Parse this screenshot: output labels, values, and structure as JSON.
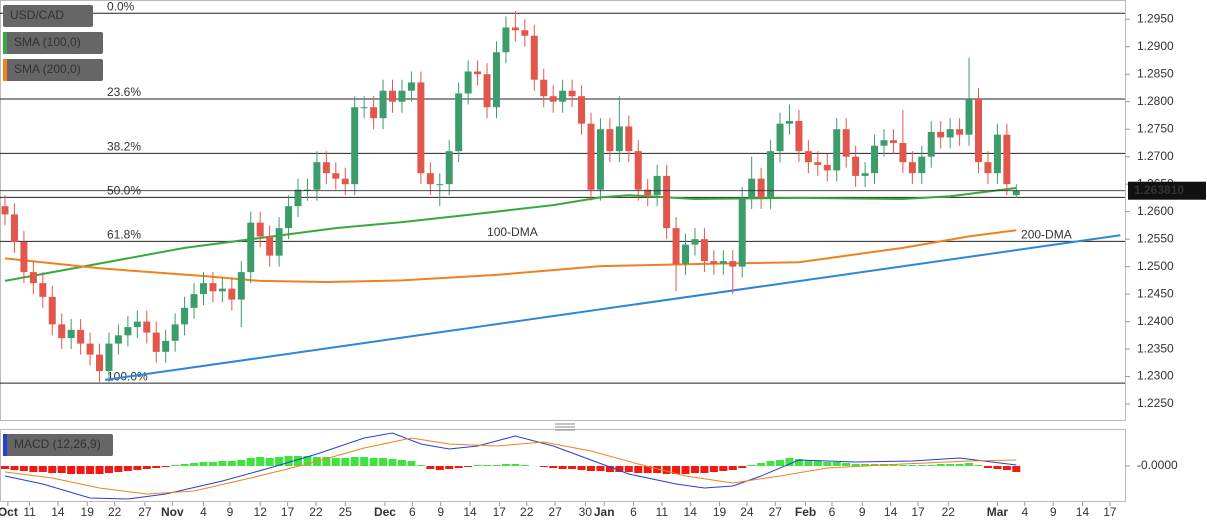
{
  "chart_data": [
    {
      "type": "candlestick",
      "title": "USD/CAD",
      "up_color": "#3d9c6b",
      "down_color": "#e2574c",
      "open": [
        1.261,
        1.2595,
        1.2545,
        1.249,
        1.247,
        1.2445,
        1.2395,
        1.237,
        1.2385,
        1.236,
        1.234,
        1.231,
        1.236,
        1.2375,
        1.239,
        1.24,
        1.238,
        1.2345,
        1.2365,
        1.2395,
        1.2425,
        1.245,
        1.247,
        1.2455,
        1.246,
        1.244,
        1.249,
        1.258,
        1.2555,
        1.252,
        1.257,
        1.261,
        1.264,
        1.264,
        1.269,
        1.267,
        1.266,
        1.265,
        1.279,
        1.279,
        1.277,
        1.282,
        1.28,
        1.282,
        1.2835,
        1.267,
        1.265,
        1.265,
        1.271,
        1.2815,
        1.2855,
        1.285,
        1.279,
        1.289,
        1.2935,
        1.293,
        1.292,
        1.284,
        1.281,
        1.28,
        1.282,
        1.281,
        1.276,
        1.264,
        1.275,
        1.271,
        1.2755,
        1.271,
        1.264,
        1.263,
        1.2665,
        1.257,
        1.2505,
        1.254,
        1.255,
        1.251,
        1.2505,
        1.251,
        1.25,
        1.2625,
        1.266,
        1.2625,
        1.271,
        1.276,
        1.2765,
        1.271,
        1.269,
        1.2685,
        1.2675,
        1.275,
        1.27,
        1.2665,
        1.267,
        1.272,
        1.273,
        1.2725,
        1.269,
        1.267,
        1.27,
        1.2745,
        1.2735,
        1.275,
        1.274,
        1.2805,
        1.269,
        1.267,
        1.274,
        1.263
      ],
      "high": [
        1.263,
        1.2615,
        1.2565,
        1.251,
        1.249,
        1.2465,
        1.2415,
        1.2405,
        1.2405,
        1.238,
        1.236,
        1.238,
        1.2395,
        1.241,
        1.242,
        1.242,
        1.24,
        1.2385,
        1.2415,
        1.2445,
        1.247,
        1.249,
        1.249,
        1.248,
        1.248,
        1.251,
        1.26,
        1.26,
        1.2575,
        1.259,
        1.263,
        1.266,
        1.266,
        1.271,
        1.271,
        1.269,
        1.268,
        1.281,
        1.281,
        1.281,
        1.284,
        1.284,
        1.284,
        1.2855,
        1.2855,
        1.269,
        1.267,
        1.273,
        1.2835,
        1.2875,
        1.2875,
        1.287,
        1.291,
        1.2955,
        1.2965,
        1.295,
        1.294,
        1.286,
        1.283,
        1.284,
        1.284,
        1.283,
        1.278,
        1.277,
        1.277,
        1.281,
        1.2775,
        1.273,
        1.266,
        1.2685,
        1.2685,
        1.259,
        1.256,
        1.257,
        1.257,
        1.253,
        1.253,
        1.253,
        1.2645,
        1.27,
        1.268,
        1.273,
        1.278,
        1.2795,
        1.2785,
        1.273,
        1.271,
        1.2705,
        1.277,
        1.277,
        1.272,
        1.269,
        1.274,
        1.275,
        1.275,
        1.2785,
        1.271,
        1.272,
        1.2765,
        1.2765,
        1.277,
        1.277,
        1.288,
        1.2825,
        1.271,
        1.276,
        1.276,
        1.265
      ],
      "low": [
        1.2575,
        1.2525,
        1.247,
        1.245,
        1.2425,
        1.2375,
        1.235,
        1.235,
        1.234,
        1.232,
        1.229,
        1.229,
        1.234,
        1.2355,
        1.237,
        1.236,
        1.2325,
        1.2325,
        1.2345,
        1.2375,
        1.2405,
        1.243,
        1.2435,
        1.2435,
        1.242,
        1.239,
        1.247,
        1.2535,
        1.25,
        1.25,
        1.255,
        1.259,
        1.262,
        1.262,
        1.265,
        1.264,
        1.263,
        1.263,
        1.277,
        1.275,
        1.275,
        1.278,
        1.278,
        1.28,
        1.265,
        1.263,
        1.261,
        1.263,
        1.269,
        1.2795,
        1.283,
        1.277,
        1.277,
        1.287,
        1.291,
        1.29,
        1.282,
        1.279,
        1.278,
        1.278,
        1.279,
        1.274,
        1.262,
        1.262,
        1.269,
        1.269,
        1.269,
        1.262,
        1.261,
        1.261,
        1.255,
        1.2455,
        1.2485,
        1.252,
        1.249,
        1.2485,
        1.2485,
        1.245,
        1.248,
        1.2605,
        1.2605,
        1.2605,
        1.269,
        1.274,
        1.269,
        1.267,
        1.2665,
        1.2655,
        1.2655,
        1.268,
        1.2645,
        1.2645,
        1.265,
        1.27,
        1.2705,
        1.267,
        1.265,
        1.265,
        1.268,
        1.2715,
        1.2715,
        1.272,
        1.272,
        1.267,
        1.265,
        1.265,
        1.263,
        1.2625
      ],
      "close": [
        1.2595,
        1.2545,
        1.249,
        1.247,
        1.2445,
        1.2395,
        1.237,
        1.2385,
        1.236,
        1.234,
        1.231,
        1.236,
        1.2375,
        1.239,
        1.24,
        1.238,
        1.2345,
        1.2365,
        1.2395,
        1.2425,
        1.245,
        1.247,
        1.2455,
        1.246,
        1.244,
        1.249,
        1.258,
        1.2555,
        1.252,
        1.257,
        1.261,
        1.264,
        1.264,
        1.269,
        1.267,
        1.266,
        1.265,
        1.279,
        1.279,
        1.277,
        1.282,
        1.28,
        1.282,
        1.2835,
        1.267,
        1.265,
        1.265,
        1.271,
        1.2815,
        1.2855,
        1.285,
        1.279,
        1.289,
        1.2935,
        1.293,
        1.292,
        1.284,
        1.281,
        1.28,
        1.282,
        1.281,
        1.276,
        1.264,
        1.275,
        1.271,
        1.2755,
        1.271,
        1.264,
        1.263,
        1.2665,
        1.257,
        1.2505,
        1.254,
        1.255,
        1.251,
        1.2505,
        1.251,
        1.25,
        1.2625,
        1.266,
        1.2625,
        1.271,
        1.276,
        1.2765,
        1.271,
        1.269,
        1.2685,
        1.2675,
        1.275,
        1.27,
        1.2665,
        1.267,
        1.272,
        1.273,
        1.2725,
        1.269,
        1.267,
        1.27,
        1.2745,
        1.2735,
        1.275,
        1.274,
        1.2805,
        1.269,
        1.267,
        1.274,
        1.265,
        1.2638
      ],
      "xlim": [
        -0.53,
        118.5
      ],
      "ylim": [
        1.2221,
        1.2985
      ],
      "yticks": [
        {
          "value": 1.295,
          "label": "1.2950"
        },
        {
          "value": 1.29,
          "label": "1.2900"
        },
        {
          "value": 1.285,
          "label": "1.2850"
        },
        {
          "value": 1.28,
          "label": "1.2800"
        },
        {
          "value": 1.275,
          "label": "1.2750"
        },
        {
          "value": 1.27,
          "label": "1.2700"
        },
        {
          "value": 1.265,
          "label": "1.2650"
        },
        {
          "value": 1.26,
          "label": "1.2600"
        },
        {
          "value": 1.255,
          "label": "1.2550"
        },
        {
          "value": 1.25,
          "label": "1.2500"
        },
        {
          "value": 1.245,
          "label": "1.2450"
        },
        {
          "value": 1.24,
          "label": "1.2400"
        },
        {
          "value": 1.235,
          "label": "1.2350"
        },
        {
          "value": 1.23,
          "label": "1.2300"
        },
        {
          "value": 1.225,
          "label": "1.2250"
        }
      ],
      "overlays": [
        {
          "name": "SMA (100,0)",
          "label": "100-DMA",
          "color": "#3aa83e",
          "x": [
            0,
            19,
            27,
            35,
            42,
            49,
            58,
            63,
            66,
            73,
            84,
            95,
            100,
            107
          ],
          "values": [
            1.2474,
            1.2534,
            1.2552,
            1.257,
            1.2581,
            1.2594,
            1.2612,
            1.2626,
            1.263,
            1.2623,
            1.2625,
            1.2623,
            1.2628,
            1.2643
          ]
        },
        {
          "name": "SMA (200,0)",
          "label": "200-DMA",
          "color": "#f0821e",
          "x": [
            0,
            10,
            21,
            27,
            34,
            42,
            52,
            63,
            74,
            84,
            95,
            102,
            107
          ],
          "values": [
            1.2515,
            1.2497,
            1.2483,
            1.2474,
            1.2472,
            1.2475,
            1.2485,
            1.2501,
            1.2505,
            1.2508,
            1.2534,
            1.2555,
            1.2566
          ]
        }
      ],
      "trendline": {
        "color": "#2f86d8",
        "x": [
          10.6,
          118
        ],
        "values": [
          1.2294,
          1.2557
        ]
      },
      "fib_levels": [
        {
          "label": "0.0%",
          "value": 1.2961
        },
        {
          "label": "23.6%",
          "value": 1.2805
        },
        {
          "label": "38.2%",
          "value": 1.2706
        },
        {
          "label": "50.0%",
          "value": 1.2626
        },
        {
          "label": "61.8%",
          "value": 1.2546
        },
        {
          "label": "100.0%",
          "value": 1.2288
        }
      ],
      "last_price": {
        "value": 1.26381,
        "label": "1.263810"
      }
    },
    {
      "type": "macd",
      "title": "MACD (12,26,9)",
      "up_color": "#3ee33e",
      "down_color": "#f01a10",
      "histogram": [
        -0.0003,
        -0.0004,
        -0.0005,
        -0.0006,
        -0.0006,
        -0.0007,
        -0.0007,
        -0.0008,
        -0.0008,
        -0.0008,
        -0.0008,
        -0.0007,
        -0.0006,
        -0.0005,
        -0.0004,
        -0.0003,
        -0.0002,
        -0.0001,
        0.0001,
        0.0002,
        0.0003,
        0.0004,
        0.0004,
        0.0005,
        0.0005,
        0.0006,
        0.0008,
        0.0009,
        0.0008,
        0.0009,
        0.001,
        0.001,
        0.001,
        0.0009,
        0.0009,
        0.0008,
        0.0008,
        0.0009,
        0.0009,
        0.0008,
        0.0008,
        0.0007,
        0.0006,
        0.0005,
        0.0001,
        -0.0003,
        -0.0004,
        -0.0003,
        -0.0002,
        -0.0001,
        0.0001,
        0.0001,
        0.0001,
        0.0002,
        0.0002,
        0.0001,
        0.0,
        -0.0001,
        -0.0002,
        -0.0003,
        -0.0003,
        -0.0004,
        -0.0005,
        -0.0005,
        -0.0006,
        -0.0006,
        -0.0006,
        -0.0007,
        -0.0007,
        -0.0007,
        -0.0008,
        -0.0008,
        -0.0008,
        -0.0007,
        -0.0007,
        -0.0006,
        -0.0005,
        -0.0004,
        -0.0002,
        0.0001,
        0.0003,
        0.0005,
        0.0006,
        0.0008,
        0.0007,
        0.0006,
        0.0005,
        0.0004,
        0.0004,
        0.0003,
        0.0002,
        0.0002,
        0.0002,
        0.0002,
        0.0002,
        0.0001,
        0.0001,
        0.0001,
        0.0001,
        0.0002,
        0.0002,
        0.0002,
        0.0003,
        0.0001,
        -0.0002,
        -0.0003,
        -0.0004,
        -0.0006
      ],
      "macd": {
        "color": "#2440d8",
        "x": [
          0,
          4,
          9,
          13,
          17,
          23,
          28,
          33,
          38,
          41,
          44,
          47,
          50,
          54,
          58,
          62,
          66,
          71,
          74,
          77,
          80,
          84,
          90,
          96,
          101,
          107
        ],
        "values": [
          -0.001,
          -0.0018,
          -0.0032,
          -0.0033,
          -0.0028,
          -0.0015,
          -0.0002,
          0.0012,
          0.0028,
          0.0033,
          0.0022,
          0.0017,
          0.002,
          0.003,
          0.002,
          0.0006,
          -0.0008,
          -0.0018,
          -0.0022,
          -0.002,
          -0.001,
          0.0006,
          0.0004,
          0.0005,
          0.0008,
          0.0001
        ]
      },
      "signal": {
        "color": "#f0821e",
        "x": [
          0,
          5,
          10,
          15,
          20,
          26,
          32,
          38,
          43,
          47,
          52,
          57,
          62,
          67,
          72,
          77,
          82,
          87,
          95,
          102,
          107
        ],
        "values": [
          -0.0006,
          -0.0012,
          -0.0022,
          -0.0028,
          -0.0025,
          -0.0012,
          0.0002,
          0.0018,
          0.0028,
          0.0022,
          0.002,
          0.0024,
          0.0015,
          0.0002,
          -0.001,
          -0.0017,
          -0.001,
          -0.0002,
          0.0002,
          0.0005,
          0.0006
        ]
      },
      "xlim": [
        -0.53,
        118.5
      ],
      "ylim": [
        -0.0036,
        0.0036
      ],
      "yticks": [
        {
          "value": 0,
          "label": "-0.0000"
        }
      ],
      "xticks": [
        {
          "value": 0.3,
          "label": "Oct"
        },
        {
          "value": 2.6,
          "label": "11"
        },
        {
          "value": 5.6,
          "label": "14"
        },
        {
          "value": 8.7,
          "label": "19"
        },
        {
          "value": 11.6,
          "label": "22"
        },
        {
          "value": 14.8,
          "label": "27"
        },
        {
          "value": 17.7,
          "label": "Nov"
        },
        {
          "value": 21,
          "label": "4"
        },
        {
          "value": 23.8,
          "label": "9"
        },
        {
          "value": 27,
          "label": "12"
        },
        {
          "value": 29.9,
          "label": "17"
        },
        {
          "value": 32.9,
          "label": "22"
        },
        {
          "value": 36,
          "label": "25"
        },
        {
          "value": 40.2,
          "label": "Dec"
        },
        {
          "value": 43.1,
          "label": "6"
        },
        {
          "value": 46.1,
          "label": "9"
        },
        {
          "value": 49.2,
          "label": "14"
        },
        {
          "value": 52.3,
          "label": "17"
        },
        {
          "value": 55.2,
          "label": "22"
        },
        {
          "value": 58.2,
          "label": "27"
        },
        {
          "value": 61.4,
          "label": "30"
        },
        {
          "value": 63.4,
          "label": "Jan"
        },
        {
          "value": 66.5,
          "label": "6"
        },
        {
          "value": 69.5,
          "label": "11"
        },
        {
          "value": 72.5,
          "label": "14"
        },
        {
          "value": 75.6,
          "label": "19"
        },
        {
          "value": 78.5,
          "label": "24"
        },
        {
          "value": 81.5,
          "label": "27"
        },
        {
          "value": 84.7,
          "label": "Feb"
        },
        {
          "value": 87.5,
          "label": "6"
        },
        {
          "value": 90.7,
          "label": "9"
        },
        {
          "value": 93.7,
          "label": "14"
        },
        {
          "value": 96.6,
          "label": "17"
        },
        {
          "value": 99.8,
          "label": "22"
        },
        {
          "value": 105,
          "label": "Mar"
        },
        {
          "value": 107.9,
          "label": "4"
        },
        {
          "value": 110.9,
          "label": "9"
        },
        {
          "value": 114,
          "label": "14"
        },
        {
          "value": 116.9,
          "label": "17"
        }
      ]
    }
  ]
}
